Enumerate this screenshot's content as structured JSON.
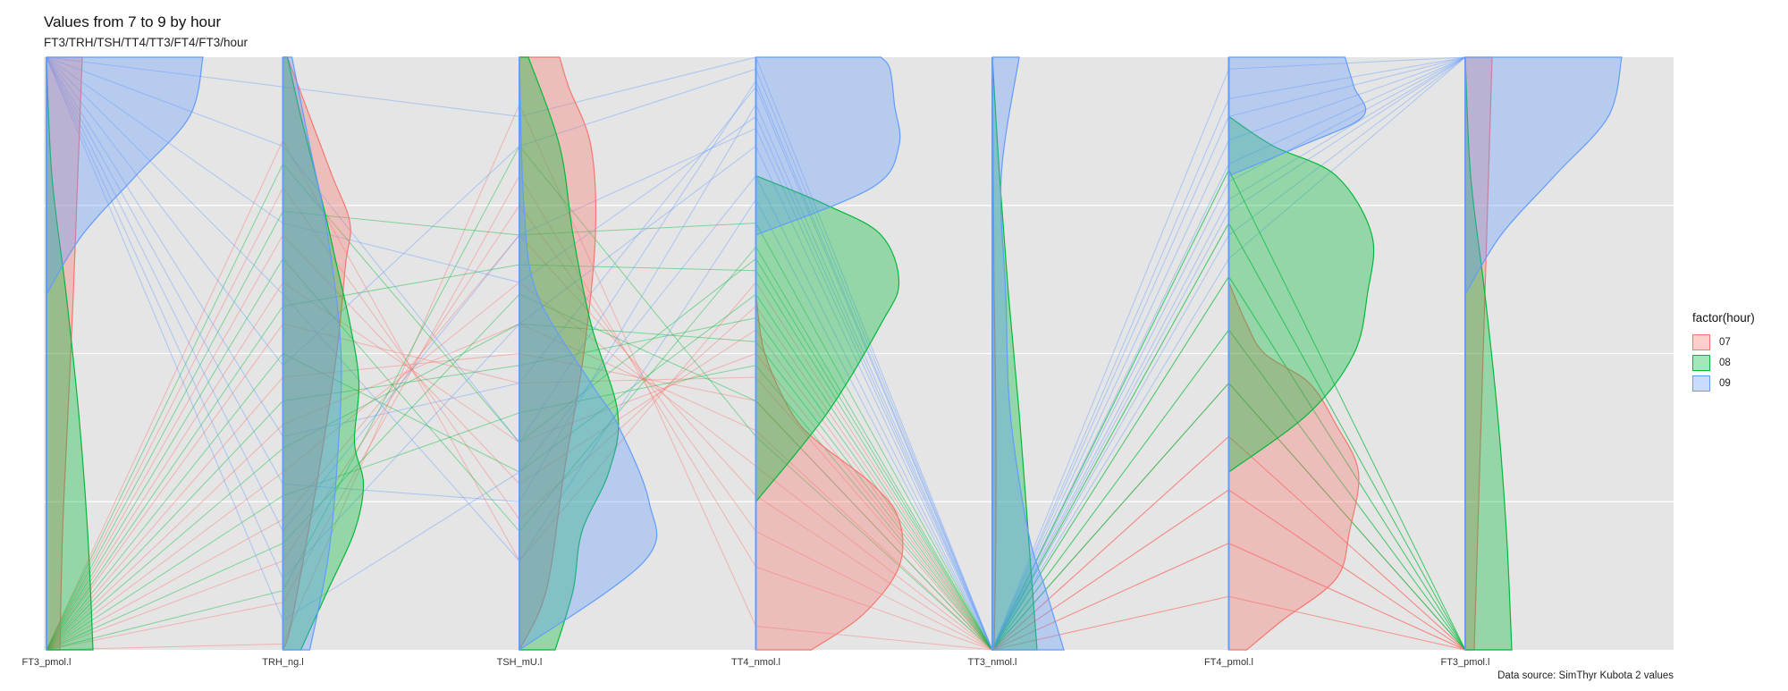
{
  "title": "Values from 7 to 9 by hour",
  "subtitle": "FT3/TRH/TSH/TT4/TT3/FT4/FT3/hour",
  "caption": "Data source: SimThyr Kubota 2 values",
  "legend": {
    "title": "factor(hour)",
    "items": [
      {
        "label": "07",
        "color": "#F8766D"
      },
      {
        "label": "08",
        "color": "#00BA38"
      },
      {
        "label": "09",
        "color": "#619CFF"
      }
    ]
  },
  "chart_data": {
    "type": "parallel-coordinates",
    "axes": [
      "FT3_pmol.l",
      "TRH_ng.l",
      "TSH_mU.l",
      "TT4_nmol.l",
      "TT3_nmol.l",
      "FT4_pmol.l",
      "FT3_pmol.l"
    ],
    "value_range": [
      0,
      1
    ],
    "groups": [
      {
        "name": "07",
        "color": "#F8766D",
        "lines": [
          [
            0.0,
            0.08,
            0.8,
            0.14,
            0.0,
            0.09,
            0.0
          ],
          [
            0.0,
            0.15,
            0.75,
            0.2,
            0.0,
            0.18,
            0.0
          ],
          [
            0.0,
            0.22,
            0.7,
            0.26,
            0.0,
            0.27,
            0.0
          ],
          [
            0.0,
            0.3,
            0.62,
            0.31,
            0.0,
            0.36,
            0.0
          ],
          [
            0.0,
            0.38,
            0.55,
            0.37,
            0.0,
            0.45,
            0.0
          ],
          [
            0.0,
            0.46,
            0.5,
            0.42,
            0.0,
            0.36,
            0.0
          ],
          [
            0.0,
            0.55,
            0.45,
            0.46,
            0.0,
            0.27,
            0.0
          ],
          [
            0.0,
            0.62,
            0.35,
            0.5,
            0.0,
            0.18,
            0.0
          ],
          [
            0.0,
            0.7,
            0.28,
            0.54,
            0.0,
            0.09,
            0.0
          ],
          [
            0.0,
            0.78,
            0.22,
            0.58,
            0.0,
            0.36,
            0.0
          ],
          [
            0.0,
            0.86,
            0.15,
            0.62,
            0.0,
            0.27,
            0.0
          ],
          [
            0.0,
            0.01,
            0.92,
            0.04,
            0.0,
            0.18,
            0.0
          ]
        ]
      },
      {
        "name": "08",
        "color": "#00BA38",
        "lines": [
          [
            0.0,
            0.1,
            0.85,
            0.36,
            0.0,
            0.45,
            0.0
          ],
          [
            0.0,
            0.18,
            0.6,
            0.42,
            0.0,
            0.54,
            0.0
          ],
          [
            0.0,
            0.26,
            0.4,
            0.48,
            0.0,
            0.63,
            0.0
          ],
          [
            0.0,
            0.34,
            0.55,
            0.52,
            0.0,
            0.72,
            0.0
          ],
          [
            0.0,
            0.42,
            0.48,
            0.56,
            0.0,
            0.81,
            0.0
          ],
          [
            0.0,
            0.5,
            0.3,
            0.6,
            0.0,
            0.63,
            0.0
          ],
          [
            0.0,
            0.58,
            0.65,
            0.64,
            0.0,
            0.54,
            0.0
          ],
          [
            0.0,
            0.66,
            0.2,
            0.68,
            0.0,
            0.72,
            0.0
          ],
          [
            0.0,
            0.74,
            0.7,
            0.72,
            0.0,
            0.45,
            0.0
          ],
          [
            0.0,
            0.82,
            0.35,
            0.66,
            0.0,
            0.81,
            0.0
          ]
        ]
      },
      {
        "name": "09",
        "color": "#619CFF",
        "lines": [
          [
            1.0,
            0.05,
            0.3,
            0.8,
            0.0,
            0.9,
            1.0
          ],
          [
            1.0,
            0.12,
            0.55,
            0.85,
            0.0,
            0.82,
            1.0
          ],
          [
            1.0,
            0.2,
            0.7,
            0.88,
            0.0,
            0.76,
            1.0
          ],
          [
            1.0,
            0.28,
            0.25,
            0.92,
            0.0,
            0.7,
            1.0
          ],
          [
            1.0,
            0.36,
            0.45,
            0.95,
            0.0,
            0.66,
            1.0
          ],
          [
            1.0,
            0.48,
            0.85,
            0.98,
            0.0,
            0.86,
            1.0
          ],
          [
            1.0,
            0.6,
            0.15,
            0.76,
            0.0,
            0.93,
            1.0
          ],
          [
            1.0,
            0.72,
            0.62,
            0.9,
            0.0,
            0.74,
            1.0
          ],
          [
            1.0,
            0.85,
            0.35,
            0.96,
            0.0,
            0.98,
            1.0
          ],
          [
            1.0,
            0.95,
            0.9,
            1.0,
            0.0,
            0.79,
            1.0
          ]
        ]
      }
    ],
    "densities": {
      "07": [
        [
          [
            0.0,
            0.15
          ],
          [
            0.2,
            0.18
          ],
          [
            0.4,
            0.24
          ],
          [
            0.6,
            0.3
          ],
          [
            0.8,
            0.35
          ],
          [
            1.0,
            0.4
          ]
        ],
        [
          [
            0.0,
            0.0
          ],
          [
            0.05,
            0.1
          ],
          [
            0.3,
            0.4
          ],
          [
            0.5,
            0.6
          ],
          [
            0.65,
            0.7
          ],
          [
            0.72,
            0.75
          ],
          [
            0.8,
            0.55
          ],
          [
            0.9,
            0.3
          ],
          [
            1.0,
            0.05
          ]
        ],
        [
          [
            0.0,
            0.0
          ],
          [
            0.1,
            0.3
          ],
          [
            0.3,
            0.5
          ],
          [
            0.5,
            0.72
          ],
          [
            0.7,
            0.85
          ],
          [
            0.85,
            0.8
          ],
          [
            0.95,
            0.55
          ],
          [
            1.0,
            0.45
          ]
        ],
        [
          [
            0.0,
            0.62
          ],
          [
            0.06,
            1.2
          ],
          [
            0.14,
            1.6
          ],
          [
            0.22,
            1.6
          ],
          [
            0.28,
            1.3
          ],
          [
            0.35,
            0.7
          ],
          [
            0.4,
            0.4
          ],
          [
            0.5,
            0.1
          ],
          [
            0.6,
            0.0
          ]
        ],
        [
          [
            0.0,
            0.02
          ],
          [
            0.2,
            0.04
          ],
          [
            0.4,
            0.04
          ],
          [
            0.6,
            0.02
          ],
          [
            0.8,
            0.01
          ],
          [
            1.0,
            0.0
          ]
        ],
        [
          [
            0.0,
            0.2
          ],
          [
            0.05,
            0.6
          ],
          [
            0.12,
            1.2
          ],
          [
            0.2,
            1.35
          ],
          [
            0.3,
            1.45
          ],
          [
            0.38,
            1.2
          ],
          [
            0.45,
            0.9
          ],
          [
            0.5,
            0.4
          ],
          [
            0.55,
            0.2
          ],
          [
            0.62,
            0.0
          ]
        ],
        [
          [
            0.0,
            0.1
          ],
          [
            0.2,
            0.14
          ],
          [
            0.4,
            0.18
          ],
          [
            0.6,
            0.22
          ],
          [
            0.8,
            0.26
          ],
          [
            1.0,
            0.3
          ]
        ]
      ],
      "08": [
        [
          [
            0.0,
            0.52
          ],
          [
            0.2,
            0.46
          ],
          [
            0.4,
            0.36
          ],
          [
            0.6,
            0.22
          ],
          [
            0.8,
            0.06
          ],
          [
            1.0,
            0.0
          ]
        ],
        [
          [
            0.0,
            0.2
          ],
          [
            0.1,
            0.5
          ],
          [
            0.2,
            0.8
          ],
          [
            0.28,
            0.9
          ],
          [
            0.35,
            0.8
          ],
          [
            0.45,
            0.85
          ],
          [
            0.55,
            0.75
          ],
          [
            0.65,
            0.6
          ],
          [
            0.75,
            0.45
          ],
          [
            0.9,
            0.2
          ],
          [
            1.0,
            0.05
          ]
        ],
        [
          [
            0.0,
            0.4
          ],
          [
            0.1,
            0.6
          ],
          [
            0.2,
            0.7
          ],
          [
            0.3,
            1.0
          ],
          [
            0.4,
            1.1
          ],
          [
            0.55,
            0.8
          ],
          [
            0.7,
            0.6
          ],
          [
            0.85,
            0.45
          ],
          [
            1.0,
            0.1
          ]
        ],
        [
          [
            0.25,
            0.0
          ],
          [
            0.4,
            0.8
          ],
          [
            0.55,
            1.4
          ],
          [
            0.62,
            1.6
          ],
          [
            0.7,
            1.4
          ],
          [
            0.75,
            0.8
          ],
          [
            0.8,
            0.0
          ]
        ],
        [
          [
            0.0,
            0.5
          ],
          [
            0.2,
            0.4
          ],
          [
            0.4,
            0.3
          ],
          [
            0.6,
            0.18
          ],
          [
            0.8,
            0.08
          ],
          [
            1.0,
            0.0
          ]
        ],
        [
          [
            0.3,
            0.0
          ],
          [
            0.4,
            0.9
          ],
          [
            0.5,
            1.4
          ],
          [
            0.6,
            1.55
          ],
          [
            0.7,
            1.6
          ],
          [
            0.8,
            1.2
          ],
          [
            0.85,
            0.5
          ],
          [
            0.9,
            0.0
          ]
        ],
        [
          [
            0.0,
            0.52
          ],
          [
            0.2,
            0.46
          ],
          [
            0.4,
            0.36
          ],
          [
            0.6,
            0.22
          ],
          [
            0.8,
            0.06
          ],
          [
            1.0,
            0.0
          ]
        ]
      ],
      "09": [
        [
          [
            0.6,
            0.0
          ],
          [
            0.7,
            0.4
          ],
          [
            0.8,
            1.0
          ],
          [
            0.9,
            1.6
          ],
          [
            1.0,
            1.75
          ]
        ],
        [
          [
            0.0,
            0.3
          ],
          [
            0.15,
            0.5
          ],
          [
            0.3,
            0.6
          ],
          [
            0.5,
            0.65
          ],
          [
            0.7,
            0.5
          ],
          [
            0.85,
            0.3
          ],
          [
            1.0,
            0.1
          ]
        ],
        [
          [
            0.0,
            0.0
          ],
          [
            0.15,
            1.4
          ],
          [
            0.25,
            1.45
          ],
          [
            0.38,
            1.1
          ],
          [
            0.45,
            0.8
          ],
          [
            0.6,
            0.2
          ],
          [
            0.75,
            0.05
          ],
          [
            1.0,
            0.0
          ]
        ],
        [
          [
            0.7,
            0.0
          ],
          [
            0.78,
            1.3
          ],
          [
            0.85,
            1.6
          ],
          [
            0.92,
            1.55
          ],
          [
            0.98,
            1.5
          ],
          [
            1.0,
            1.4
          ]
        ],
        [
          [
            0.0,
            0.8
          ],
          [
            0.1,
            0.6
          ],
          [
            0.2,
            0.4
          ],
          [
            0.4,
            0.2
          ],
          [
            0.6,
            0.15
          ],
          [
            0.8,
            0.1
          ],
          [
            1.0,
            0.3
          ]
        ],
        [
          [
            0.8,
            0.0
          ],
          [
            0.85,
            0.8
          ],
          [
            0.9,
            1.5
          ],
          [
            0.95,
            1.4
          ],
          [
            1.0,
            1.3
          ]
        ],
        [
          [
            0.6,
            0.0
          ],
          [
            0.7,
            0.4
          ],
          [
            0.8,
            1.0
          ],
          [
            0.9,
            1.6
          ],
          [
            1.0,
            1.75
          ]
        ]
      ]
    },
    "grid": true,
    "legend_position": "right"
  }
}
